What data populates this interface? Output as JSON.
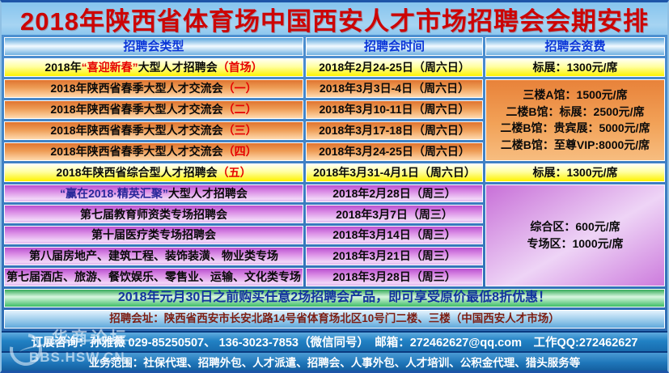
{
  "title": "2018年陕西省体育场中国西安人才市场招聘会会期安排",
  "table": {
    "headers": [
      "招聘会类型",
      "招聘会时间",
      "招聘会资费"
    ],
    "rows": [
      {
        "theme": "yellow",
        "type": [
          [
            "2018年",
            "k"
          ],
          [
            "“喜迎新春”",
            "r"
          ],
          [
            "大型人才招聘会",
            "k"
          ],
          [
            "（首场）",
            "r"
          ]
        ],
        "time": "2018年2月24-25日（周六日）"
      },
      {
        "theme": "orange",
        "type": [
          [
            "2018年陕西省春季大型人才交流会",
            "k"
          ],
          [
            "（一）",
            "r"
          ]
        ],
        "time": "2018年3月3日-4日（周六日）"
      },
      {
        "theme": "orange",
        "type": [
          [
            "2018年陕西省春季大型人才交流会",
            "k"
          ],
          [
            "（二）",
            "r"
          ]
        ],
        "time": "2018年3月10-11日（周六日）"
      },
      {
        "theme": "orange",
        "type": [
          [
            "2018年陕西省春季大型人才交流会",
            "k"
          ],
          [
            "（三）",
            "r"
          ]
        ],
        "time": "2018年3月17-18日（周六日）"
      },
      {
        "theme": "orange",
        "type": [
          [
            "2018年陕西省春季大型人才交流会",
            "k"
          ],
          [
            "（四）",
            "r"
          ]
        ],
        "time": "2018年3月24-25日（周六日）"
      },
      {
        "theme": "yellow",
        "type": [
          [
            "2018年陕西省综合型人才招聘会 ",
            "k"
          ],
          [
            "（五）",
            "r"
          ]
        ],
        "time": "2018年3月31-4月1日（周六日）"
      },
      {
        "theme": "purple",
        "type": [
          [
            "“赢在2018·精英汇聚”",
            "b"
          ],
          [
            "大型人才招聘会",
            "k"
          ]
        ],
        "time": "2018年2月28日（周三）"
      },
      {
        "theme": "purple",
        "type": [
          [
            "第七届教育师资类专场招聘会",
            "k"
          ]
        ],
        "time": "2018年3月7日（周三）"
      },
      {
        "theme": "purple",
        "type": [
          [
            "第十届医疗类专场招聘会",
            "k"
          ]
        ],
        "time": "2018年3月14日（周三）"
      },
      {
        "theme": "purple",
        "type": [
          [
            "第八届房地产、建筑工程、装饰装潢、物业类专场",
            "k"
          ]
        ],
        "time": "2018年3月21日（周三）"
      },
      {
        "theme": "purple",
        "type": [
          [
            "第七届酒店、旅游、餐饮娱乐、零售业、运输、文化类专场",
            "k"
          ]
        ],
        "time": "2018年3月28日（周三）"
      }
    ],
    "fees": [
      {
        "theme": "yellow",
        "span": 1,
        "lines": [
          "标展：1300元/席"
        ]
      },
      {
        "theme": "orange-merged",
        "span": 4,
        "lines": [
          "三楼A馆：1500元/席",
          "二楼B馆：标展：2500元/席",
          "二楼B馆：贵宾展：5000元/席",
          "二楼B馆：至尊VIP:8000元/席"
        ]
      },
      {
        "theme": "yellow",
        "span": 1,
        "lines": [
          "标展：1300元/席"
        ]
      },
      {
        "theme": "purple-merged",
        "span": 5,
        "lines": [
          "综合区：600元/席",
          "专场区：1000元/席"
        ]
      }
    ]
  },
  "promo": "2018年元月30日之前购买任意2场招聘会产品，即可享受原价最低8折优惠！",
  "address": "招聘会址：陕西省西安市长安北路14号省体育场北区10号门二楼、三楼（中国西安人才市场）",
  "contact": "订展咨询：孙雅薇 029-85250507、 136-3023-7853（微信同号）　邮箱：272462627@qq.com　工作QQ:272462627",
  "footer": "业务范围：社保代理、招聘外包、人才派遣、招聘会、人事外包、人才培训、公积金代理、猎头服务等",
  "watermark": {
    "line1": "华商论坛",
    "line2": "BBS.HSW.CN"
  },
  "colors": {
    "title_red": "#cc0505",
    "header_blue": "#0a36d8",
    "accent_red": "#e60000",
    "highlight_blue": "#28289a",
    "promo_text": "#12339e",
    "address_text": "#7c1d12"
  }
}
